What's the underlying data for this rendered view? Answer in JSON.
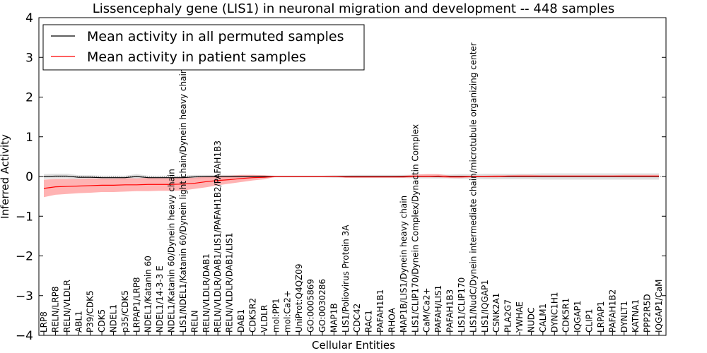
{
  "chart_data": {
    "type": "line",
    "title": "Lissencephaly gene (LIS1) in neuronal migration and development -- 448 samples",
    "xlabel": "Cellular Entities",
    "ylabel": "Inferred Activity",
    "ylim": [
      -4,
      4
    ],
    "yticks": [
      -4,
      -3,
      -2,
      -1,
      0,
      1,
      2,
      3,
      4
    ],
    "ytick_labels": [
      "−4",
      "−3",
      "−2",
      "−1",
      "0",
      "1",
      "2",
      "3",
      "4"
    ],
    "legend": {
      "placement": "top-left",
      "entries": [
        {
          "label": "Mean activity in all permuted samples",
          "color": "#000000"
        },
        {
          "label": "Mean activity in patient samples",
          "color": "#ff0000"
        }
      ]
    },
    "categories": [
      "LRP8",
      "RELN/LRP8",
      "RELN/VLDLR",
      "ABL1",
      "P39/CDK5",
      "CDK5",
      "NDEL1",
      "p35/CDK5",
      "LRPAP1/LRP8",
      "NDEL1/Katanin 60",
      "NDEL1/14-3-3 E",
      "NDEL1/Katanin 60/Dynein heavy chain",
      "LIS1/NDEL1/Katanin 60/Dynein light chain/Dynein heavy chain",
      "RELN",
      "RELN/VLDLR/DAB1",
      "RELN/VLDLR/DAB1/LIS1/PAFAH1B2/PAFAH1B3",
      "RELN/VLDLR/DAB1/LIS1",
      "DAB1",
      "CDK5R2",
      "VLDLR",
      "mol:PP1",
      "mol:Ca2+",
      "UniProt:Q4QZ09",
      "GO:0005869",
      "GO:0030286",
      "MAP1B",
      "LIS1/Poliovirus Protein 3A",
      "CDC42",
      "RAC1",
      "PAFAH1B1",
      "RHOA",
      "MAP1B/LIS1/Dynein heavy chain",
      "LIS1/CLIP170/Dynein Complex/Dynactin Complex",
      "CaM/Ca2+",
      "PAFAH/LIS1",
      "PAFAH1B3",
      "LIS1/CLIP170",
      "LIS1/NudC/Dynein intermediate chain/microtubule organizing center",
      "LIS1/IQGAP1",
      "CSNK2A1",
      "PLA2G7",
      "YWHAE",
      "NUDC",
      "CALM1",
      "DYNC1H1",
      "CDK5R1",
      "IQGAP1",
      "CLIP1",
      "LRPAP1",
      "PAFAH1B2",
      "DYNLT1",
      "KATNA1",
      "PPP2R5D",
      "IQGAP1/CaM"
    ],
    "series": [
      {
        "name": "Mean activity in all permuted samples",
        "color": "#000000",
        "values": [
          0.0,
          0.01,
          0.01,
          -0.02,
          -0.02,
          -0.03,
          -0.03,
          -0.03,
          0.0,
          -0.03,
          -0.03,
          -0.03,
          -0.03,
          -0.01,
          0.0,
          0.0,
          0.0,
          0.0,
          0.0,
          0.0,
          0.0,
          0.0,
          0.0,
          0.0,
          0.0,
          0.0,
          0.0,
          0.0,
          0.0,
          0.0,
          0.0,
          0.0,
          0.0,
          0.0,
          0.0,
          0.0,
          0.0,
          0.0,
          0.0,
          0.0,
          0.0,
          0.0,
          0.0,
          0.0,
          0.0,
          0.0,
          0.0,
          0.0,
          0.0,
          0.0,
          0.0,
          0.0,
          0.0,
          0.0
        ],
        "lower": [
          -0.06,
          -0.05,
          -0.05,
          -0.07,
          -0.07,
          -0.08,
          -0.08,
          -0.08,
          -0.06,
          -0.08,
          -0.08,
          -0.08,
          -0.08,
          -0.06,
          -0.04,
          -0.04,
          -0.04,
          -0.04,
          -0.04,
          -0.03,
          -0.02,
          -0.02,
          -0.02,
          -0.02,
          -0.02,
          -0.03,
          -0.03,
          -0.04,
          -0.04,
          -0.04,
          -0.04,
          -0.04,
          -0.05,
          -0.05,
          -0.05,
          -0.05,
          -0.06,
          -0.06,
          -0.07,
          -0.07,
          -0.07,
          -0.07,
          -0.07,
          -0.08,
          -0.08,
          -0.08,
          -0.08,
          -0.08,
          -0.08,
          -0.08,
          -0.08,
          -0.08,
          -0.08,
          -0.08
        ],
        "upper": [
          0.06,
          0.07,
          0.07,
          0.03,
          0.03,
          0.02,
          0.02,
          0.02,
          0.06,
          0.02,
          0.02,
          0.02,
          0.02,
          0.04,
          0.04,
          0.04,
          0.04,
          0.04,
          0.04,
          0.03,
          0.02,
          0.02,
          0.02,
          0.02,
          0.02,
          0.03,
          0.03,
          0.04,
          0.04,
          0.04,
          0.04,
          0.04,
          0.05,
          0.05,
          0.05,
          0.05,
          0.06,
          0.06,
          0.07,
          0.07,
          0.07,
          0.07,
          0.07,
          0.08,
          0.08,
          0.08,
          0.08,
          0.08,
          0.08,
          0.08,
          0.08,
          0.08,
          0.08,
          0.08
        ]
      },
      {
        "name": "Mean activity in patient samples",
        "color": "#ff0000",
        "fill": "#ff9999",
        "values": [
          -0.3,
          -0.26,
          -0.25,
          -0.24,
          -0.23,
          -0.22,
          -0.22,
          -0.21,
          -0.21,
          -0.2,
          -0.2,
          -0.2,
          -0.19,
          -0.17,
          -0.13,
          -0.1,
          -0.08,
          -0.05,
          -0.03,
          -0.02,
          0.0,
          0.0,
          0.0,
          0.0,
          0.0,
          0.0,
          -0.01,
          -0.01,
          -0.01,
          -0.01,
          -0.01,
          -0.01,
          0.0,
          0.0,
          0.01,
          -0.01,
          -0.01,
          0.0,
          0.0,
          0.0,
          0.01,
          0.01,
          0.01,
          0.01,
          0.01,
          0.01,
          0.01,
          0.01,
          0.01,
          0.01,
          0.01,
          0.01,
          0.01,
          0.01
        ],
        "lower": [
          -0.52,
          -0.46,
          -0.44,
          -0.42,
          -0.41,
          -0.39,
          -0.39,
          -0.38,
          -0.37,
          -0.37,
          -0.36,
          -0.36,
          -0.35,
          -0.31,
          -0.27,
          -0.22,
          -0.18,
          -0.14,
          -0.1,
          -0.07,
          -0.01,
          -0.01,
          -0.01,
          -0.01,
          -0.01,
          -0.01,
          -0.03,
          -0.03,
          -0.03,
          -0.03,
          -0.03,
          -0.03,
          -0.02,
          -0.02,
          -0.02,
          -0.04,
          -0.04,
          -0.02,
          -0.02,
          -0.02,
          -0.01,
          -0.01,
          -0.01,
          -0.01,
          -0.01,
          -0.01,
          -0.01,
          -0.01,
          -0.01,
          -0.01,
          -0.01,
          -0.01,
          -0.01,
          -0.01
        ],
        "upper": [
          -0.08,
          -0.06,
          -0.06,
          -0.06,
          -0.05,
          -0.05,
          -0.05,
          -0.04,
          -0.05,
          -0.03,
          -0.04,
          -0.04,
          -0.03,
          -0.03,
          0.01,
          0.02,
          0.02,
          0.04,
          0.04,
          0.03,
          0.01,
          0.01,
          0.01,
          0.01,
          0.01,
          0.01,
          0.01,
          0.01,
          0.01,
          0.01,
          0.01,
          0.02,
          0.05,
          0.06,
          0.06,
          0.02,
          0.02,
          0.02,
          0.02,
          0.03,
          0.03,
          0.04,
          0.04,
          0.03,
          0.03,
          0.03,
          0.03,
          0.03,
          0.03,
          0.03,
          0.04,
          0.04,
          0.04,
          0.04
        ]
      }
    ]
  }
}
